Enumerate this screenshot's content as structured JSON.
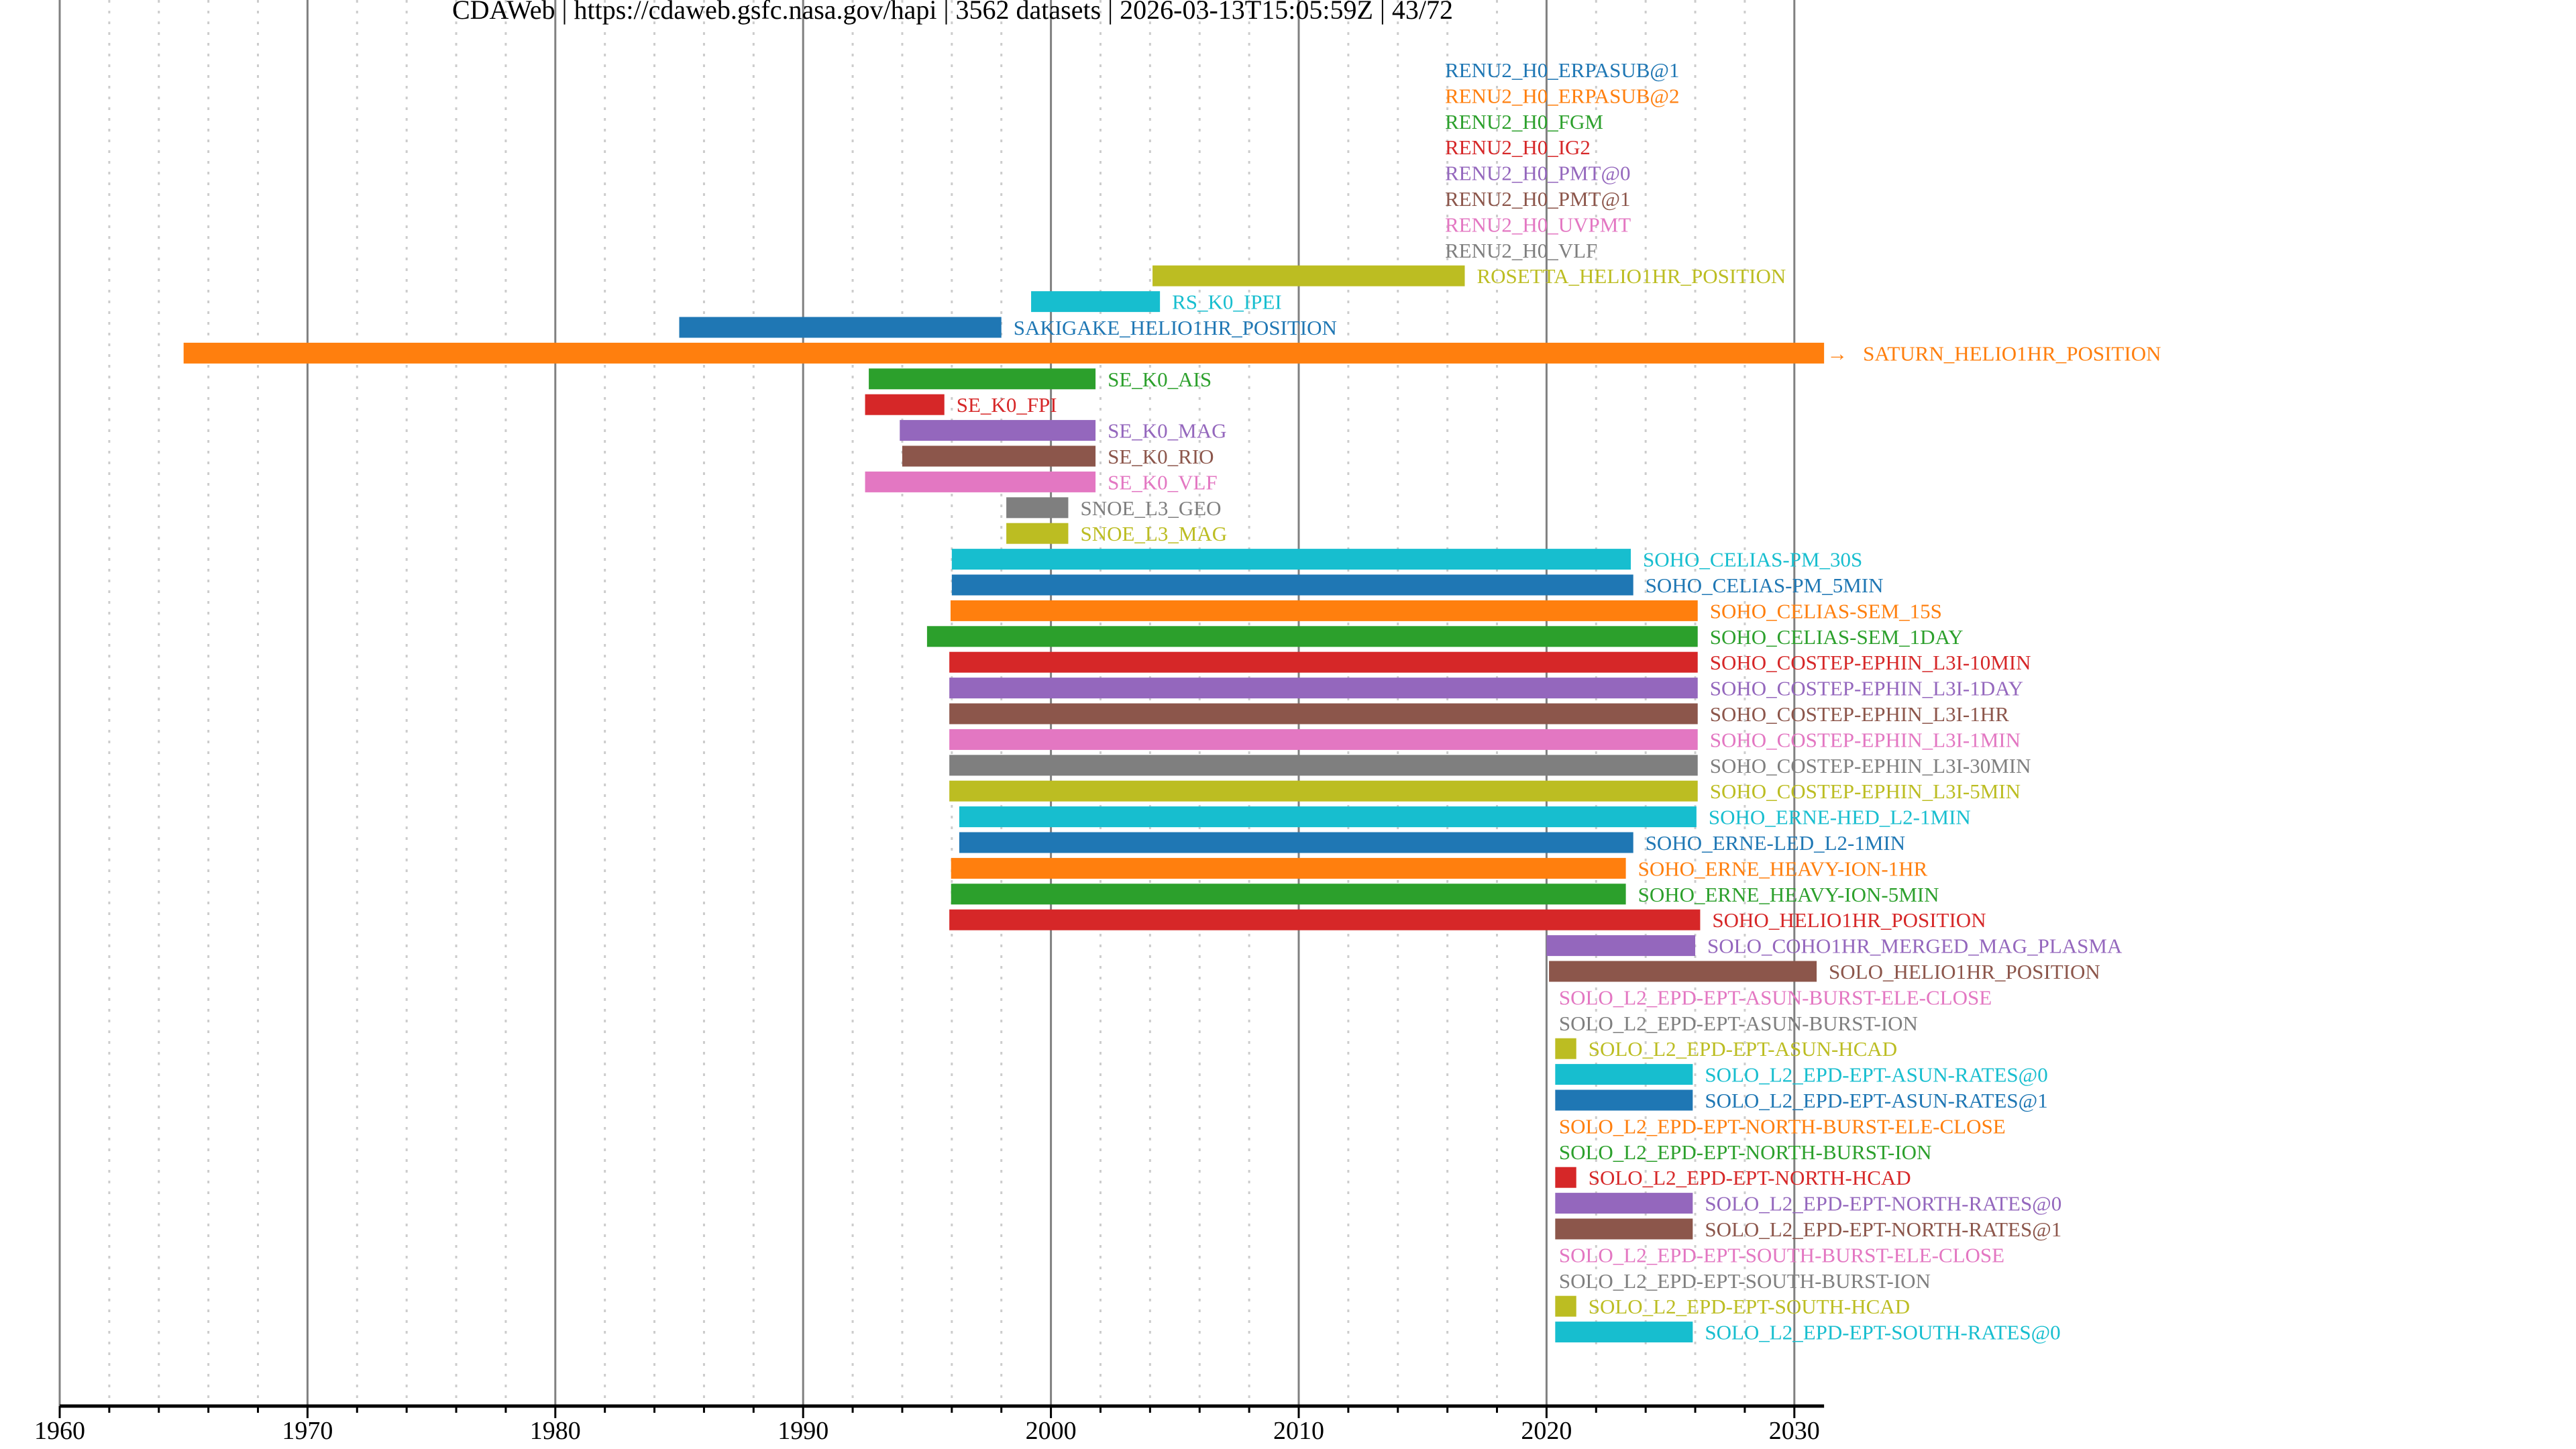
{
  "chart_data": {
    "type": "timeline",
    "title_parts": [
      "CDAWeb",
      "https://cdaweb.gsfc.nasa.gov/hapi",
      "3562 datasets",
      "2026-03-13T15:05:59Z",
      "43/72"
    ],
    "title": "CDAWeb | https://cdaweb.gsfc.nasa.gov/hapi | 3562 datasets | 2026-03-13T15:05:59Z | 43/72",
    "xlabel": "",
    "ylabel": "",
    "xlim": [
      1960,
      2031.2
    ],
    "xticks": [
      1960,
      1970,
      1980,
      1990,
      2000,
      2010,
      2020,
      2030
    ],
    "xtick_labels": [
      "1960",
      "1970",
      "1980",
      "1990",
      "2000",
      "2010",
      "2020",
      "2030"
    ],
    "minor_tick_step_years": 2,
    "grid": {
      "major": true,
      "minor": "dotted"
    },
    "colors": [
      "#1f77b4",
      "#ff7f0e",
      "#2ca02c",
      "#d62728",
      "#9467bd",
      "#8c564b",
      "#e377c2",
      "#7f7f7f",
      "#bcbd22",
      "#17becf"
    ],
    "truncated_marker": "→",
    "rows": [
      {
        "name": "RENU2_H0_ERPASUB@1",
        "start": null,
        "end": null,
        "label_at": 2015.9
      },
      {
        "name": "RENU2_H0_ERPASUB@2",
        "start": null,
        "end": null,
        "label_at": 2015.9
      },
      {
        "name": "RENU2_H0_FGM",
        "start": null,
        "end": null,
        "label_at": 2015.9
      },
      {
        "name": "RENU2_H0_IG2",
        "start": null,
        "end": null,
        "label_at": 2015.9
      },
      {
        "name": "RENU2_H0_PMT@0",
        "start": null,
        "end": null,
        "label_at": 2015.9
      },
      {
        "name": "RENU2_H0_PMT@1",
        "start": null,
        "end": null,
        "label_at": 2015.9
      },
      {
        "name": "RENU2_H0_UVPMT",
        "start": null,
        "end": null,
        "label_at": 2015.9
      },
      {
        "name": "RENU2_H0_VLF",
        "start": null,
        "end": null,
        "label_at": 2015.9
      },
      {
        "name": "ROSETTA_HELIO1HR_POSITION",
        "start": 2004.1,
        "end": 2016.7
      },
      {
        "name": "RS_K0_IPEI",
        "start": 1999.2,
        "end": 2004.4
      },
      {
        "name": "SAKIGAKE_HELIO1HR_POSITION",
        "start": 1985.0,
        "end": 1998.0
      },
      {
        "name": "SATURN_HELIO1HR_POSITION",
        "start": 1965.0,
        "end": 2031.2,
        "truncated": true
      },
      {
        "name": "SE_K0_AIS",
        "start": 1992.65,
        "end": 2001.8
      },
      {
        "name": "SE_K0_FPI",
        "start": 1992.5,
        "end": 1995.7
      },
      {
        "name": "SE_K0_MAG",
        "start": 1993.9,
        "end": 2001.8
      },
      {
        "name": "SE_K0_RIO",
        "start": 1994.0,
        "end": 2001.8
      },
      {
        "name": "SE_K0_VLF",
        "start": 1992.5,
        "end": 2001.8
      },
      {
        "name": "SNOE_L3_GEO",
        "start": 1998.2,
        "end": 2000.7
      },
      {
        "name": "SNOE_L3_MAG",
        "start": 1998.2,
        "end": 2000.7
      },
      {
        "name": "SOHO_CELIAS-PM_30S",
        "start": 1996.0,
        "end": 2023.4
      },
      {
        "name": "SOHO_CELIAS-PM_5MIN",
        "start": 1996.0,
        "end": 2023.5
      },
      {
        "name": "SOHO_CELIAS-SEM_15S",
        "start": 1995.95,
        "end": 2026.1
      },
      {
        "name": "SOHO_CELIAS-SEM_1DAY",
        "start": 1995.0,
        "end": 2026.1
      },
      {
        "name": "SOHO_COSTEP-EPHIN_L3I-10MIN",
        "start": 1995.9,
        "end": 2026.1
      },
      {
        "name": "SOHO_COSTEP-EPHIN_L3I-1DAY",
        "start": 1995.9,
        "end": 2026.1
      },
      {
        "name": "SOHO_COSTEP-EPHIN_L3I-1HR",
        "start": 1995.9,
        "end": 2026.1
      },
      {
        "name": "SOHO_COSTEP-EPHIN_L3I-1MIN",
        "start": 1995.9,
        "end": 2026.1
      },
      {
        "name": "SOHO_COSTEP-EPHIN_L3I-30MIN",
        "start": 1995.9,
        "end": 2026.1
      },
      {
        "name": "SOHO_COSTEP-EPHIN_L3I-5MIN",
        "start": 1995.9,
        "end": 2026.1
      },
      {
        "name": "SOHO_ERNE-HED_L2-1MIN",
        "start": 1996.3,
        "end": 2026.05
      },
      {
        "name": "SOHO_ERNE-LED_L2-1MIN",
        "start": 1996.3,
        "end": 2023.5
      },
      {
        "name": "SOHO_ERNE_HEAVY-ION-1HR",
        "start": 1995.97,
        "end": 2023.2
      },
      {
        "name": "SOHO_ERNE_HEAVY-ION-5MIN",
        "start": 1995.97,
        "end": 2023.2
      },
      {
        "name": "SOHO_HELIO1HR_POSITION",
        "start": 1995.9,
        "end": 2026.2
      },
      {
        "name": "SOLO_COHO1HR_MERGED_MAG_PLASMA",
        "start": 2020.0,
        "end": 2026.0
      },
      {
        "name": "SOLO_HELIO1HR_POSITION",
        "start": 2020.1,
        "end": 2030.9
      },
      {
        "name": "SOLO_L2_EPD-EPT-ASUN-BURST-ELE-CLOSE",
        "start": null,
        "end": null,
        "label_at": 2020.5
      },
      {
        "name": "SOLO_L2_EPD-EPT-ASUN-BURST-ION",
        "start": null,
        "end": null,
        "label_at": 2020.5
      },
      {
        "name": "SOLO_L2_EPD-EPT-ASUN-HCAD",
        "start": 2020.35,
        "end": 2021.2
      },
      {
        "name": "SOLO_L2_EPD-EPT-ASUN-RATES@0",
        "start": 2020.35,
        "end": 2025.9
      },
      {
        "name": "SOLO_L2_EPD-EPT-ASUN-RATES@1",
        "start": 2020.35,
        "end": 2025.9
      },
      {
        "name": "SOLO_L2_EPD-EPT-NORTH-BURST-ELE-CLOSE",
        "start": null,
        "end": null,
        "label_at": 2020.5
      },
      {
        "name": "SOLO_L2_EPD-EPT-NORTH-BURST-ION",
        "start": null,
        "end": null,
        "label_at": 2020.5
      },
      {
        "name": "SOLO_L2_EPD-EPT-NORTH-HCAD",
        "start": 2020.35,
        "end": 2021.2
      },
      {
        "name": "SOLO_L2_EPD-EPT-NORTH-RATES@0",
        "start": 2020.35,
        "end": 2025.9
      },
      {
        "name": "SOLO_L2_EPD-EPT-NORTH-RATES@1",
        "start": 2020.35,
        "end": 2025.9
      },
      {
        "name": "SOLO_L2_EPD-EPT-SOUTH-BURST-ELE-CLOSE",
        "start": null,
        "end": null,
        "label_at": 2020.5
      },
      {
        "name": "SOLO_L2_EPD-EPT-SOUTH-BURST-ION",
        "start": null,
        "end": null,
        "label_at": 2020.5
      },
      {
        "name": "SOLO_L2_EPD-EPT-SOUTH-HCAD",
        "start": 2020.35,
        "end": 2021.2
      },
      {
        "name": "SOLO_L2_EPD-EPT-SOUTH-RATES@0",
        "start": 2020.35,
        "end": 2025.9
      }
    ]
  }
}
